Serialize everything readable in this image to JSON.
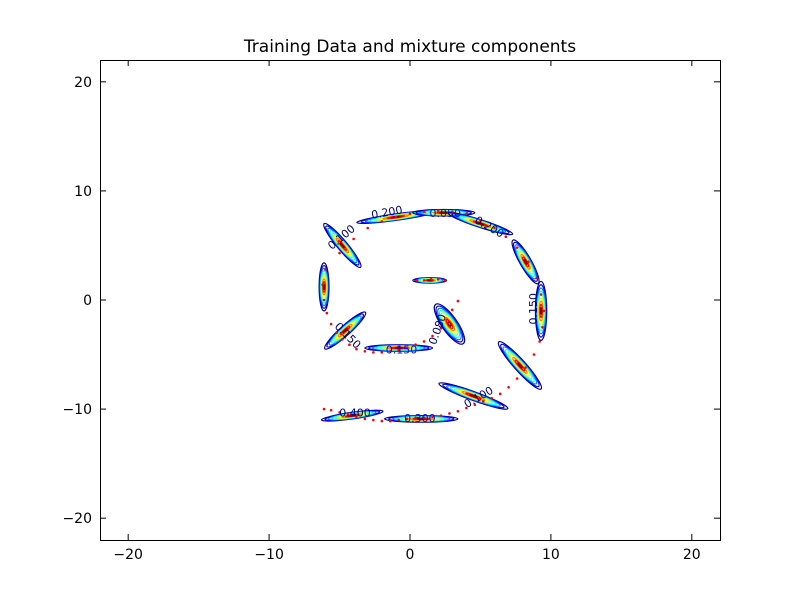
{
  "chart_data": {
    "type": "scatter",
    "title": "Training Data and mixture components",
    "xlabel": "",
    "ylabel": "",
    "xlim": [
      -22,
      22
    ],
    "ylim": [
      -22,
      22
    ],
    "x_ticks": [
      -20,
      -10,
      0,
      10,
      20
    ],
    "y_ticks": [
      -20,
      -10,
      0,
      10,
      20
    ],
    "x_tick_labels": [
      "−20",
      "−10",
      "0",
      "10",
      "20"
    ],
    "y_tick_labels": [
      "−20",
      "−10",
      "0",
      "10",
      "20"
    ],
    "grid": false,
    "legend": "none",
    "colors": {
      "data_points": "#ff0000",
      "contour_levels": [
        "#00007f",
        "#0000ff",
        "#007fff",
        "#00ffff",
        "#7fff7f",
        "#ffff00",
        "#ff7f00",
        "#ff0000",
        "#7f0000"
      ]
    },
    "series": [
      {
        "kind": "data",
        "x": [
          -6.1,
          -5.6,
          -5.0,
          -4.4,
          -3.8,
          -3.2,
          -2.6,
          -2.0,
          -1.4,
          -0.8,
          -0.2,
          0.4,
          1.0,
          1.6,
          2.2,
          2.8,
          3.4,
          4.0,
          4.6,
          5.2,
          5.8,
          6.4,
          7.0,
          7.6,
          8.2,
          8.8,
          9.2,
          9.4,
          9.5,
          9.3,
          9.0,
          8.4,
          7.6,
          6.8,
          6.0,
          5.0,
          4.0,
          3.0,
          2.0,
          1.0,
          0.0,
          -1.0,
          -2.0,
          -3.0,
          -4.0,
          -5.0,
          -6.0
        ],
        "y": [
          -10.0,
          -10.1,
          -10.3,
          -10.5,
          -10.7,
          -10.9,
          -11.0,
          -11.1,
          -11.1,
          -11.0,
          -10.9,
          -10.8,
          -10.8,
          -10.7,
          -10.6,
          -10.4,
          -10.2,
          -9.9,
          -9.6,
          -9.3,
          -9.0,
          -8.6,
          -8.0,
          -7.2,
          -6.2,
          -5.0,
          -3.8,
          -2.5,
          -1.0,
          0.5,
          2.0,
          3.5,
          4.8,
          5.8,
          6.6,
          7.3,
          7.9,
          8.1,
          8.2,
          8.1,
          7.9,
          7.6,
          7.2,
          6.6,
          5.6,
          4.3,
          2.8
        ],
        "points_2": {
          "x": [
            -6.2,
            -6.1,
            -5.9,
            -5.6,
            -5.2,
            -4.8,
            -4.3,
            -3.8,
            -3.2,
            -2.6,
            -2.0,
            -1.4,
            -0.8,
            -0.2,
            0.4,
            1.0,
            1.6,
            2.2,
            2.6,
            3.0,
            3.4
          ],
          "y": [
            1.4,
            0.0,
            -1.2,
            -2.2,
            -3.0,
            -3.6,
            -4.1,
            -4.5,
            -4.7,
            -4.8,
            -4.8,
            -4.7,
            -4.6,
            -4.4,
            -4.1,
            -3.8,
            -3.3,
            -2.6,
            -1.8,
            -0.9,
            -0.1
          ]
        },
        "points_3": {
          "x": [
            0.5,
            1.0,
            1.5,
            2.0,
            2.5
          ],
          "y": [
            1.8,
            1.8,
            1.9,
            1.9,
            1.8
          ]
        }
      }
    ],
    "components": [
      {
        "cx": -6.1,
        "cy": 1.2,
        "rx": 0.35,
        "ry": 2.2,
        "angle": 0
      },
      {
        "cx": -4.8,
        "cy": 5.0,
        "rx": 0.35,
        "ry": 2.6,
        "angle": -40
      },
      {
        "cx": -1.0,
        "cy": 7.6,
        "rx": 2.8,
        "ry": 0.3,
        "angle": -8
      },
      {
        "cx": 2.4,
        "cy": 8.0,
        "rx": 2.2,
        "ry": 0.3,
        "angle": 0
      },
      {
        "cx": 5.0,
        "cy": 7.0,
        "rx": 2.4,
        "ry": 0.35,
        "angle": 18
      },
      {
        "cx": 8.2,
        "cy": 3.5,
        "rx": 0.4,
        "ry": 2.3,
        "angle": -30
      },
      {
        "cx": 9.3,
        "cy": -1.0,
        "rx": 0.4,
        "ry": 2.7,
        "angle": 0
      },
      {
        "cx": 7.8,
        "cy": -6.0,
        "rx": 0.4,
        "ry": 2.9,
        "angle": -42
      },
      {
        "cx": 4.5,
        "cy": -8.8,
        "rx": 2.6,
        "ry": 0.4,
        "angle": 20
      },
      {
        "cx": 0.8,
        "cy": -10.9,
        "rx": 2.6,
        "ry": 0.3,
        "angle": 0
      },
      {
        "cx": -4.1,
        "cy": -10.6,
        "rx": 2.2,
        "ry": 0.3,
        "angle": -8
      },
      {
        "cx": -4.6,
        "cy": -2.8,
        "rx": 0.35,
        "ry": 2.5,
        "angle": 48
      },
      {
        "cx": -0.8,
        "cy": -4.4,
        "rx": 2.4,
        "ry": 0.3,
        "angle": 0
      },
      {
        "cx": 2.8,
        "cy": -2.2,
        "rx": 0.55,
        "ry": 2.2,
        "angle": -35
      },
      {
        "cx": 1.4,
        "cy": 1.8,
        "rx": 1.2,
        "ry": 0.25,
        "angle": 0
      }
    ],
    "annotations": [
      {
        "text": "0.100",
        "x": -4.7,
        "y": 5.5,
        "angle": -40,
        "color": "#00007f"
      },
      {
        "text": "0.200",
        "x": -1.6,
        "y": 7.7,
        "angle": -10,
        "color": "#00007f"
      },
      {
        "text": "0.050",
        "x": 2.5,
        "y": 7.6,
        "angle": 0,
        "color": "#0000ff"
      },
      {
        "text": "0.200",
        "x": 5.5,
        "y": 6.4,
        "angle": 30,
        "color": "#00007f"
      },
      {
        "text": "0.150",
        "x": 9.0,
        "y": -0.8,
        "angle": -90,
        "color": "#00007f"
      },
      {
        "text": "0.100",
        "x": 5.0,
        "y": -9.2,
        "angle": -30,
        "color": "#00007f"
      },
      {
        "text": "0.300",
        "x": 0.7,
        "y": -11.2,
        "angle": 0,
        "color": "#0000ff"
      },
      {
        "text": "0.400",
        "x": -3.9,
        "y": -10.7,
        "angle": 0,
        "color": "#00007f"
      },
      {
        "text": "0.150",
        "x": -4.6,
        "y": -3.5,
        "angle": 45,
        "color": "#00007f"
      },
      {
        "text": "0.150",
        "x": -0.6,
        "y": -4.9,
        "angle": 0,
        "color": "#0000ff"
      },
      {
        "text": "0.080",
        "x": 2.2,
        "y": -2.8,
        "angle": -70,
        "color": "#00007f"
      }
    ]
  }
}
